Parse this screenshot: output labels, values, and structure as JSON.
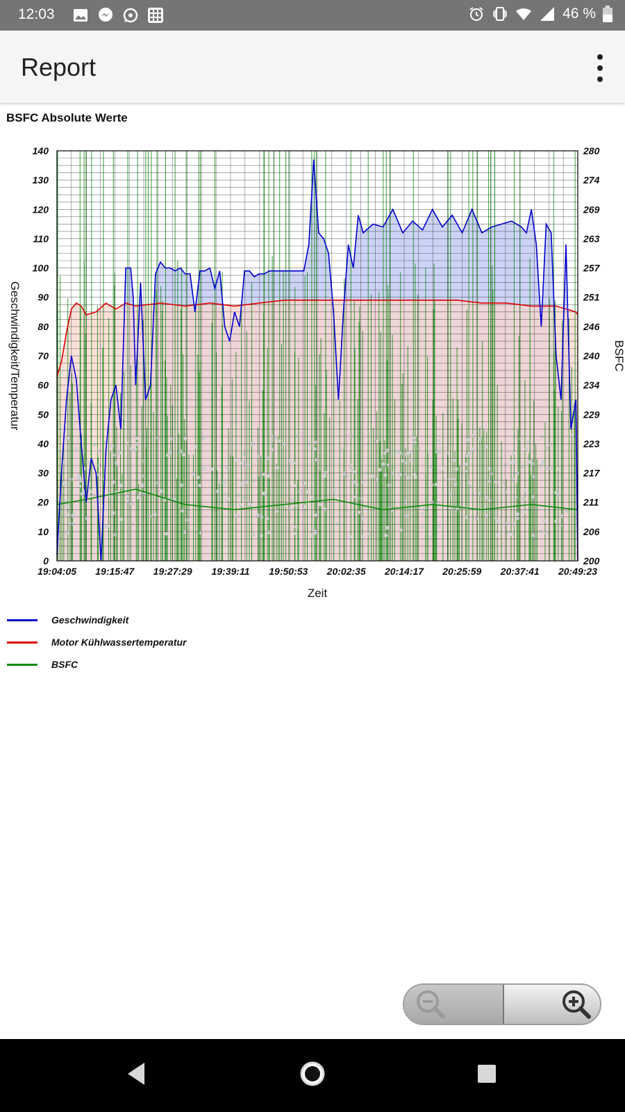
{
  "status_bar": {
    "time": "12:03",
    "battery": "46 %",
    "icons_left": [
      "image-icon",
      "messenger-icon",
      "whatsapp-icon",
      "grid-app-icon"
    ],
    "icons_right": [
      "alarm-icon",
      "vibrate-icon",
      "wifi-icon",
      "cell-signal-icon",
      "battery-icon"
    ]
  },
  "app_bar": {
    "title": "Report",
    "menu_icon": "overflow-menu-icon"
  },
  "chart_title": "BSFC Absolute Werte",
  "colors": {
    "speed": "#0000cc",
    "temperature": "#dd0000",
    "bsfc": "#0a8a0a",
    "speed_fill": "#c8cef5",
    "temp_fill": "#f8d6cc",
    "overlap_fill": "#e0bfe0",
    "scatter": "#d0d0d0"
  },
  "chart_data": {
    "type": "line",
    "xlabel": "Zeit",
    "ylabel": "Geschwindigkeit/Temperatur",
    "ylabel_right": "BSFC",
    "x_ticks": [
      "19:04:05",
      "19:15:47",
      "19:27:29",
      "19:39:11",
      "19:50:53",
      "20:02:35",
      "20:14:17",
      "20:25:59",
      "20:37:41",
      "20:49:23"
    ],
    "x_range": [
      "19:04:05",
      "20:49:23"
    ],
    "ylim": [
      0,
      140
    ],
    "y_ticks": [
      0,
      10,
      20,
      30,
      40,
      50,
      60,
      70,
      80,
      90,
      100,
      110,
      120,
      130,
      140
    ],
    "ylim_right": [
      200,
      280
    ],
    "y_right_ticks": [
      200,
      206,
      211,
      217,
      223,
      229,
      234,
      240,
      246,
      251,
      257,
      263,
      269,
      274,
      280
    ],
    "grid": true,
    "legend_position": "bottom-left",
    "series": [
      {
        "name": "Geschwindigkeit",
        "axis": "left",
        "x": [
          "19:04:05",
          "19:05:00",
          "19:06:00",
          "19:07:00",
          "19:08:00",
          "19:09:00",
          "19:10:00",
          "19:11:00",
          "19:12:00",
          "19:13:00",
          "19:14:00",
          "19:15:00",
          "19:16:00",
          "19:17:00",
          "19:18:00",
          "19:19:00",
          "19:19:30",
          "19:20:00",
          "19:21:00",
          "19:22:00",
          "19:23:00",
          "19:24:00",
          "19:25:00",
          "19:26:00",
          "19:27:00",
          "19:28:00",
          "19:29:00",
          "19:30:00",
          "19:31:00",
          "19:32:00",
          "19:33:00",
          "19:34:00",
          "19:35:00",
          "19:36:00",
          "19:37:00",
          "19:38:00",
          "19:39:00",
          "19:40:00",
          "19:41:00",
          "19:42:00",
          "19:43:00",
          "19:44:00",
          "19:45:00",
          "19:46:00",
          "19:47:00",
          "19:48:00",
          "19:50:00",
          "19:52:00",
          "19:54:00",
          "19:55:00",
          "19:56:00",
          "19:57:00",
          "19:58:00",
          "19:59:00",
          "20:00:00",
          "20:01:00",
          "20:02:00",
          "20:03:00",
          "20:04:00",
          "20:05:00",
          "20:06:00",
          "20:08:00",
          "20:10:00",
          "20:12:00",
          "20:14:00",
          "20:16:00",
          "20:18:00",
          "20:20:00",
          "20:22:00",
          "20:24:00",
          "20:26:00",
          "20:28:00",
          "20:30:00",
          "20:32:00",
          "20:34:00",
          "20:36:00",
          "20:38:00",
          "20:39:00",
          "20:40:00",
          "20:41:00",
          "20:42:00",
          "20:43:00",
          "20:44:00",
          "20:45:00",
          "20:46:00",
          "20:47:00",
          "20:48:00",
          "20:49:00",
          "20:49:23"
        ],
        "values": [
          2,
          30,
          55,
          70,
          62,
          40,
          20,
          35,
          30,
          0,
          38,
          55,
          60,
          45,
          100,
          100,
          90,
          60,
          95,
          55,
          60,
          98,
          102,
          100,
          100,
          99,
          100,
          98,
          98,
          85,
          99,
          99,
          100,
          93,
          99,
          80,
          75,
          85,
          80,
          99,
          99,
          97,
          98,
          98,
          99,
          99,
          99,
          99,
          99,
          108,
          137,
          112,
          110,
          105,
          85,
          55,
          85,
          108,
          100,
          118,
          112,
          115,
          114,
          120,
          112,
          116,
          113,
          120,
          114,
          118,
          112,
          120,
          112,
          114,
          115,
          116,
          114,
          112,
          120,
          108,
          80,
          115,
          112,
          70,
          55,
          108,
          45,
          55,
          0
        ]
      },
      {
        "name": "Motor Kühlwassertemperatur",
        "axis": "left",
        "x": [
          "19:04:05",
          "19:05:00",
          "19:06:00",
          "19:07:00",
          "19:08:00",
          "19:09:00",
          "19:10:00",
          "19:12:00",
          "19:14:00",
          "19:16:00",
          "19:18:00",
          "19:20:00",
          "19:25:00",
          "19:30:00",
          "19:35:00",
          "19:40:00",
          "19:45:00",
          "19:50:00",
          "19:55:00",
          "20:00:00",
          "20:05:00",
          "20:10:00",
          "20:15:00",
          "20:20:00",
          "20:25:00",
          "20:30:00",
          "20:35:00",
          "20:40:00",
          "20:45:00",
          "20:47:00",
          "20:49:00",
          "20:49:23"
        ],
        "values": [
          63,
          68,
          78,
          86,
          88,
          87,
          84,
          85,
          88,
          86,
          88,
          87,
          88,
          87,
          88,
          87,
          88,
          89,
          89,
          89,
          89,
          89,
          89,
          89,
          89,
          88,
          88,
          87,
          87,
          86,
          85,
          84
        ]
      },
      {
        "name": "BSFC",
        "axis": "right",
        "x": [
          "19:04:05",
          "19:10:00",
          "19:20:00",
          "19:30:00",
          "19:40:00",
          "19:50:00",
          "20:00:00",
          "20:10:00",
          "20:20:00",
          "20:30:00",
          "20:40:00",
          "20:49:23"
        ],
        "values": [
          211,
          212,
          214,
          211,
          210,
          211,
          212,
          210,
          211,
          210,
          211,
          210
        ]
      }
    ]
  },
  "legend": [
    {
      "label": "Geschwindigkeit",
      "color": "#0000cc"
    },
    {
      "label": "Motor Kühlwassertemperatur",
      "color": "#dd0000"
    },
    {
      "label": "BSFC",
      "color": "#0a8a0a"
    }
  ],
  "zoom": {
    "out_icon": "zoom-out-icon",
    "in_icon": "zoom-in-icon"
  },
  "nav_bar": {
    "buttons": [
      "back-icon",
      "home-icon",
      "recents-icon"
    ]
  }
}
